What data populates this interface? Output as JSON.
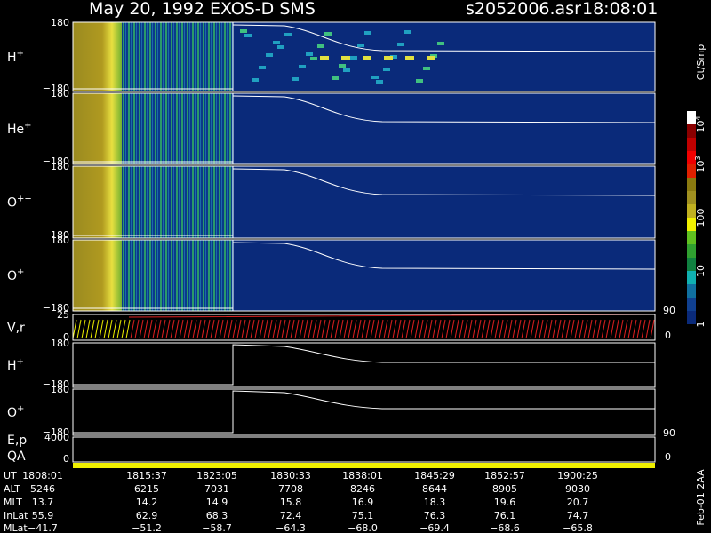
{
  "header": {
    "title": "May 20, 1992   EXOS-D SMS",
    "file": "s2052006.asr",
    "time": "18:08:01"
  },
  "panels": [
    {
      "label": "H",
      "sup": "+",
      "top": "180",
      "bottom": "−180"
    },
    {
      "label": "He",
      "sup": "+",
      "top": "180",
      "bottom": "−180"
    },
    {
      "label": "O",
      "sup": "++",
      "top": "180",
      "bottom": "−180"
    },
    {
      "label": "O",
      "sup": "+",
      "top": "180",
      "bottom": "−180"
    },
    {
      "label": "V,r",
      "top": "25",
      "bottom": "0",
      "right_top": "90",
      "right_bottom": "0"
    },
    {
      "label": "H",
      "sup": "+",
      "top": "180",
      "bottom": "−180"
    },
    {
      "label": "O",
      "sup": "+",
      "top": "180",
      "bottom": "−180"
    },
    {
      "label": "E,p",
      "top": "4000",
      "sub_label": "QA",
      "bottom": "0",
      "right_top": "90",
      "right_bottom": "0"
    }
  ],
  "colorbar": {
    "unit": "Ct/Smp",
    "labels": [
      {
        "base": "10",
        "exp": "4"
      },
      {
        "base": "10",
        "exp": "3"
      },
      {
        "base": "100"
      },
      {
        "base": "10"
      },
      {
        "base": "1"
      }
    ]
  },
  "table": {
    "row_labels": [
      "UT",
      "ALT",
      "MLT",
      "InLat",
      "MLat"
    ],
    "rows": [
      [
        "1808:01",
        "1815:37",
        "1823:05",
        "1830:33",
        "1838:01",
        "1845:29",
        "1852:57",
        "1900:25"
      ],
      [
        "5246",
        "6215",
        "7031",
        "7708",
        "8246",
        "8644",
        "8905",
        "9030"
      ],
      [
        "13.7",
        "14.2",
        "14.9",
        "15.8",
        "16.9",
        "18.3",
        "19.6",
        "20.7"
      ],
      [
        "55.9",
        "62.9",
        "68.3",
        "72.4",
        "75.1",
        "76.3",
        "76.1",
        "74.7"
      ],
      [
        "−41.7",
        "−51.2",
        "−58.7",
        "−64.3",
        "−68.0",
        "−69.4",
        "−68.6",
        "−65.8"
      ]
    ]
  },
  "footer": "Feb-01 2AA"
}
